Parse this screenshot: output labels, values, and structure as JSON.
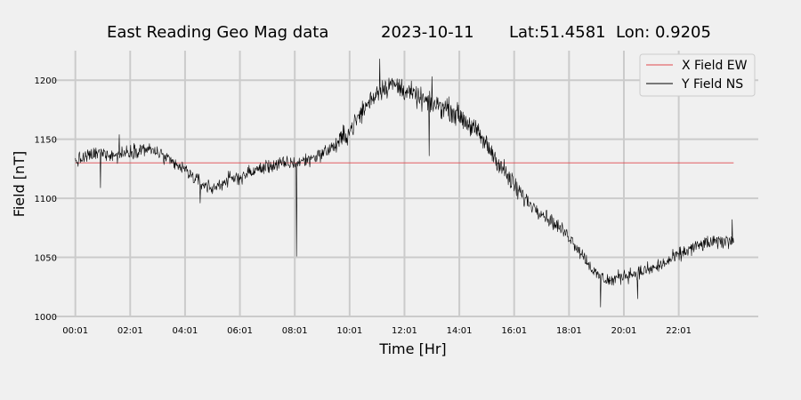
{
  "chart_data": {
    "type": "line",
    "title": {
      "station": "East Reading Geo Mag data",
      "date": "2023-10-11",
      "location": "Lat:51.4581  Lon: 0.9205"
    },
    "xlabel": "Time  [Hr]",
    "ylabel": "Field  [nT]",
    "xlim": [
      -0.8,
      24.9
    ],
    "ylim": [
      1000,
      1225
    ],
    "xticks": [
      {
        "value": 0,
        "label": "00:01"
      },
      {
        "value": 2,
        "label": "02:01"
      },
      {
        "value": 4,
        "label": "04:01"
      },
      {
        "value": 6,
        "label": "06:01"
      },
      {
        "value": 8,
        "label": "08:01"
      },
      {
        "value": 10,
        "label": "10:01"
      },
      {
        "value": 12,
        "label": "12:01"
      },
      {
        "value": 14,
        "label": "14:01"
      },
      {
        "value": 16,
        "label": "16:01"
      },
      {
        "value": 18,
        "label": "18:01"
      },
      {
        "value": 20,
        "label": "20:01"
      },
      {
        "value": 22,
        "label": "22:01"
      }
    ],
    "yticks": [
      {
        "value": 1000,
        "label": "1000"
      },
      {
        "value": 1050,
        "label": "1050"
      },
      {
        "value": 1100,
        "label": "1100"
      },
      {
        "value": 1150,
        "label": "1150"
      },
      {
        "value": 1200,
        "label": "1200"
      }
    ],
    "grid": true,
    "grid_color": "#cbcbcb",
    "background": "#f0f0f0",
    "legend_position": "top-right",
    "series": [
      {
        "name": "X Field EW",
        "color": "#e0474c",
        "x": [
          0,
          24
        ],
        "y": [
          1130,
          1130
        ]
      },
      {
        "name": "Y Field NS",
        "color": "#000000",
        "x": [
          0,
          0.5,
          1,
          1.5,
          2,
          2.5,
          3,
          3.5,
          4,
          4.5,
          5,
          5.5,
          6,
          6.5,
          7,
          7.5,
          8,
          8.5,
          9,
          9.5,
          10,
          10.5,
          11,
          11.5,
          12,
          12.5,
          13,
          13.5,
          14,
          14.5,
          15,
          15.5,
          16,
          16.5,
          17,
          17.5,
          18,
          18.5,
          19,
          19.5,
          20,
          20.5,
          21,
          21.5,
          22,
          22.5,
          23,
          23.5,
          24
        ],
        "y": [
          1131,
          1136,
          1139,
          1136,
          1140,
          1142,
          1139,
          1130,
          1124,
          1114,
          1108,
          1115,
          1118,
          1123,
          1127,
          1129,
          1130,
          1133,
          1138,
          1145,
          1157,
          1175,
          1190,
          1197,
          1192,
          1185,
          1180,
          1177,
          1170,
          1160,
          1145,
          1128,
          1110,
          1097,
          1088,
          1078,
          1068,
          1052,
          1035,
          1030,
          1035,
          1037,
          1040,
          1045,
          1052,
          1058,
          1062,
          1063,
          1065
        ],
        "spikes": [
          {
            "x": 0.92,
            "y": 1109
          },
          {
            "x": 1.6,
            "y": 1154
          },
          {
            "x": 4.55,
            "y": 1096
          },
          {
            "x": 8.07,
            "y": 1051
          },
          {
            "x": 11.1,
            "y": 1218
          },
          {
            "x": 12.9,
            "y": 1136
          },
          {
            "x": 13.0,
            "y": 1203
          },
          {
            "x": 15.55,
            "y": 1121
          },
          {
            "x": 19.15,
            "y": 1008
          },
          {
            "x": 20.5,
            "y": 1015
          },
          {
            "x": 23.95,
            "y": 1082
          }
        ]
      }
    ]
  }
}
